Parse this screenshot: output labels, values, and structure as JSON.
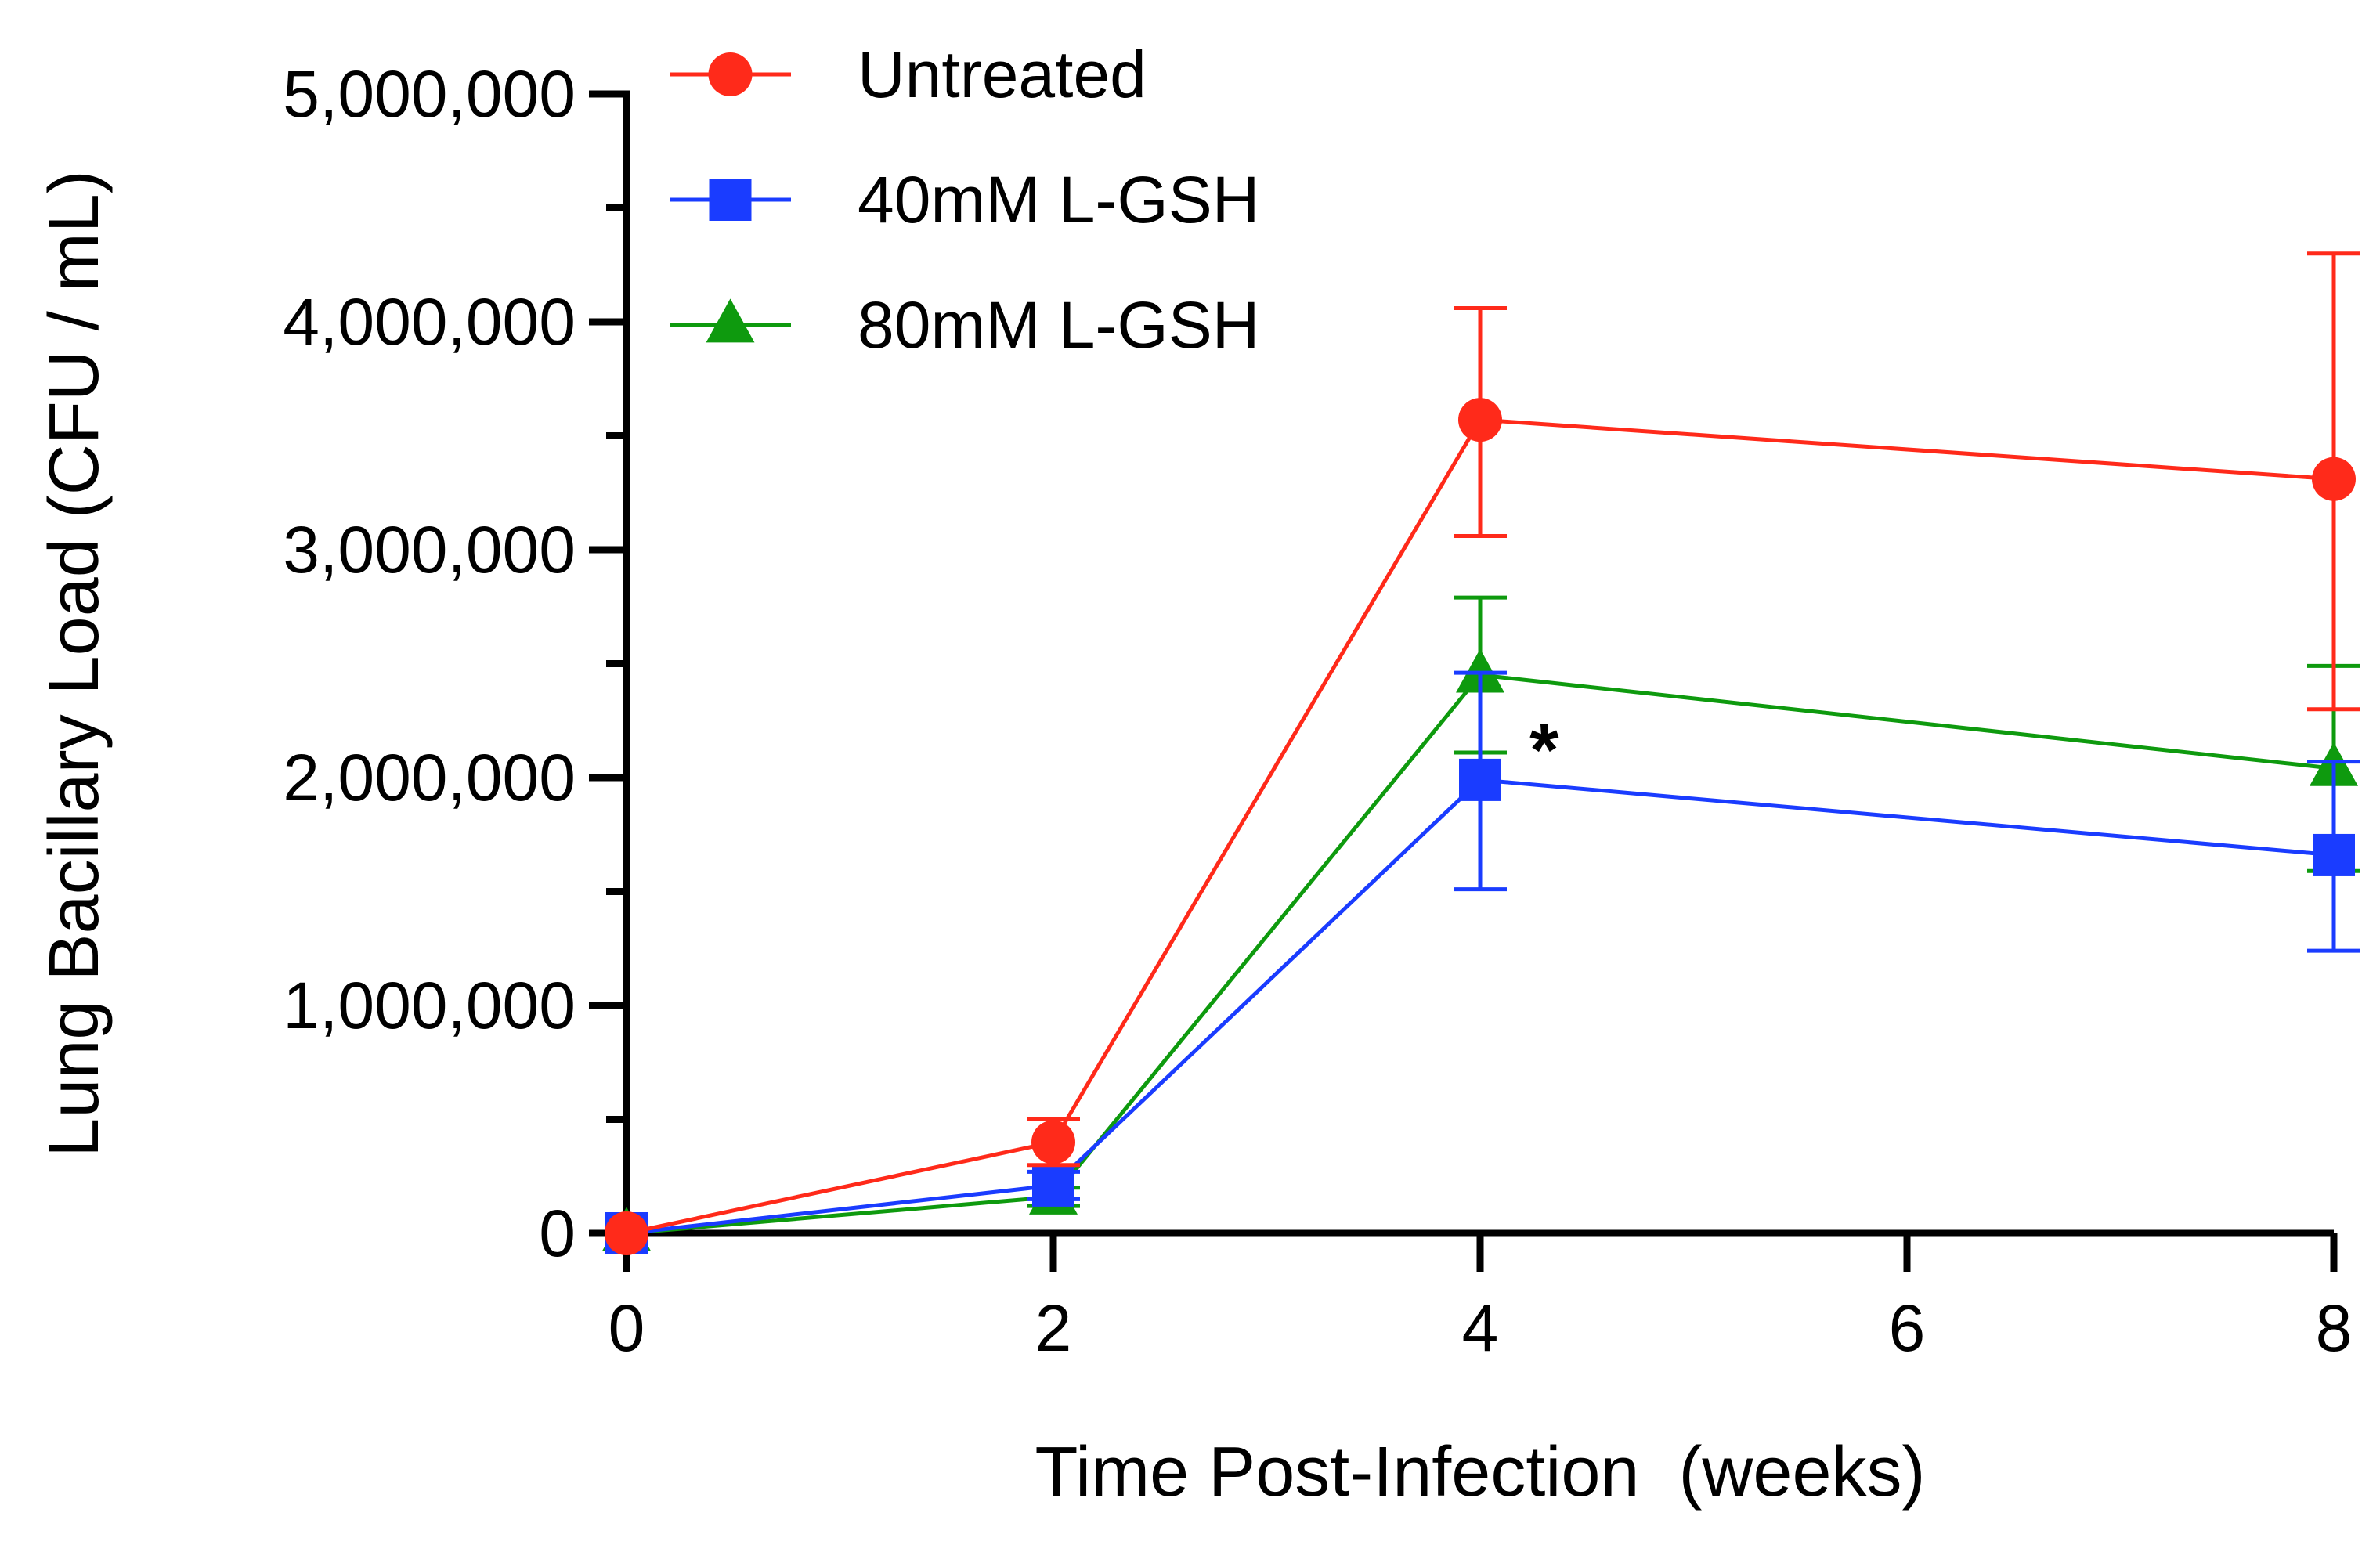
{
  "chart_data": {
    "type": "line",
    "title": "",
    "xlabel": "Time Post-Infection  (weeks)",
    "ylabel": "Lung Bacillary Load (CFU / mL)",
    "xlim": [
      0,
      8
    ],
    "ylim": [
      0,
      5000000
    ],
    "x_ticks": [
      0,
      2,
      4,
      6,
      8
    ],
    "x_tick_labels": [
      "0",
      "2",
      "4",
      "6",
      "8"
    ],
    "y_major_ticks": [
      0,
      1000000,
      2000000,
      3000000,
      4000000,
      5000000
    ],
    "y_tick_labels": [
      "0",
      "1,000,000",
      "2,000,000",
      "3,000,000",
      "4,000,000",
      "5,000,000"
    ],
    "y_minor_ticks": [
      500000,
      1500000,
      2500000,
      3500000,
      4500000
    ],
    "grid": false,
    "legend_position": "top-left",
    "series": [
      {
        "name": "Untreated",
        "color": "#ff2a1a",
        "marker": "circle",
        "x": [
          0,
          2,
          4,
          8
        ],
        "values": [
          0,
          400000,
          3570000,
          3310000
        ],
        "error_upper": [
          0,
          500000,
          4060000,
          4300000
        ],
        "error_lower": [
          0,
          300000,
          3060000,
          2300000
        ]
      },
      {
        "name": "40mM L-GSH",
        "color": "#1a3cff",
        "marker": "square",
        "x": [
          0,
          2,
          4,
          8
        ],
        "values": [
          0,
          210000,
          1990000,
          1660000
        ],
        "error_upper": [
          0,
          270000,
          2460000,
          2070000
        ],
        "error_lower": [
          0,
          150000,
          1510000,
          1240000
        ]
      },
      {
        "name": "80mM L-GSH",
        "color": "#0e9a0e",
        "marker": "triangle",
        "x": [
          0,
          2,
          4,
          8
        ],
        "values": [
          0,
          160000,
          2450000,
          2040000
        ],
        "error_upper": [
          0,
          200000,
          2790000,
          2490000
        ],
        "error_lower": [
          0,
          120000,
          2110000,
          1590000
        ]
      }
    ],
    "annotations": [
      {
        "text": "*",
        "x": 4.3,
        "y": 2120000
      }
    ]
  }
}
